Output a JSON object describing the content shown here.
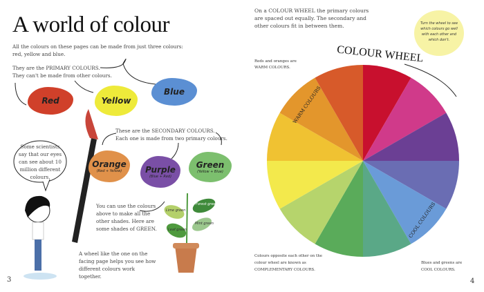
{
  "left_page": {
    "title": "A world of colour",
    "intro": "All the colours on these pages can be made from just three colours: red, yellow and blue.",
    "primary_line1": "They are the PRIMARY COLOURS.",
    "primary_line2": "They can't be made from other colours.",
    "primary": [
      {
        "name": "Red",
        "color": "#d0402a"
      },
      {
        "name": "Yellow",
        "color": "#eeea3a"
      },
      {
        "name": "Blue",
        "color": "#5b8fd3"
      }
    ],
    "secondary_line1": "These are the SECONDARY COLOURS.",
    "secondary_line2": "Each one is made from two primary colours.",
    "secondary": [
      {
        "name": "Orange",
        "mix": "(Red + Yellow)",
        "color": "#e0914a"
      },
      {
        "name": "Purple",
        "mix": "(Blue + Red)",
        "color": "#7a4fa6"
      },
      {
        "name": "Green",
        "mix": "(Yellow + Blue)",
        "color": "#7cbf6e"
      }
    ],
    "speech": "Some scientists say that our eyes can see about 10 million different colours.",
    "shades_text": "You can use the colours above to make all the other shades. Here are some shades of GREEN.",
    "leaves": [
      "Lime green",
      "Forest green",
      "Leaf green",
      "Mint green"
    ],
    "wheel_text": "A wheel like the one on the facing page helps you see how different colours work together.",
    "page_number": "3"
  },
  "right_page": {
    "intro": "On a COLOUR WHEEL the primary colours are spaced out equally. The secondary and other colours fit in between them.",
    "note": "Turn the wheel to see which colours go well with each other and which don't.",
    "wheel_title": "COLOUR WHEEL",
    "warm_text": "Reds and oranges are WARM COLOURS.",
    "warm_label": "WARM COLOURS",
    "cool_label": "COOL COLOURS",
    "complementary_text": "Colours opposite each other on the colour wheel are known as COMPLEMENTARY COLOURS.",
    "cool_text": "Blues and greens are COOL COLOURS.",
    "wheel_colors": [
      "#c8102e",
      "#d03a8a",
      "#6b3f94",
      "#6a6db3",
      "#6a9bd8",
      "#5aa887",
      "#5aab5a",
      "#b6d46c",
      "#f3e94c",
      "#f0c232",
      "#e3962c",
      "#d75a2a"
    ],
    "page_number": "4"
  }
}
